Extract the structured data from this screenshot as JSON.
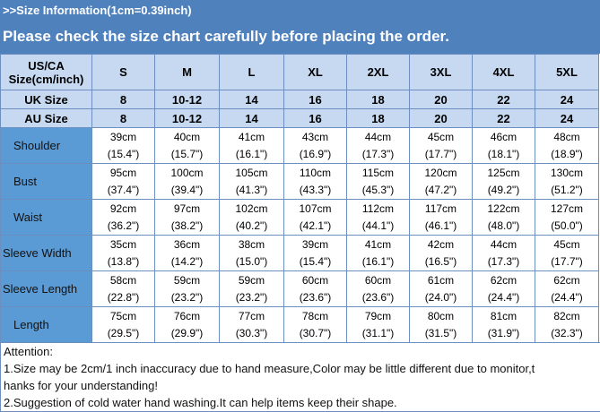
{
  "banner": {
    "line1": ">>Size Information(1cm=0.39inch)",
    "line2": "Please check the size chart carefully before placing the order."
  },
  "table": {
    "header_label": [
      "US/CA",
      "Size(cm/inch)"
    ],
    "sizes": [
      "S",
      "M",
      "L",
      "XL",
      "2XL",
      "3XL",
      "4XL",
      "5XL"
    ],
    "uk": {
      "label": "UK Size",
      "values": [
        "8",
        "10-12",
        "14",
        "16",
        "18",
        "20",
        "22",
        "24"
      ]
    },
    "au": {
      "label": "AU Size",
      "values": [
        "8",
        "10-12",
        "14",
        "16",
        "18",
        "20",
        "22",
        "24"
      ]
    },
    "rows": [
      {
        "label": "Shoulder",
        "cm": [
          "39cm",
          "40cm",
          "41cm",
          "43cm",
          "44cm",
          "45cm",
          "46cm",
          "48cm"
        ],
        "inch": [
          "(15.4\")",
          "(15.7\")",
          "(16.1\")",
          "(16.9\")",
          "(17.3\")",
          "(17.7\")",
          "(18.1\")",
          "(18.9\")"
        ]
      },
      {
        "label": "Bust",
        "cm": [
          "95cm",
          "100cm",
          "105cm",
          "110cm",
          "115cm",
          "120cm",
          "125cm",
          "130cm"
        ],
        "inch": [
          "(37.4\")",
          "(39.4\")",
          "(41.3\")",
          "(43.3\")",
          "(45.3\")",
          "(47.2\")",
          "(49.2\")",
          "(51.2\")"
        ]
      },
      {
        "label": "Waist",
        "cm": [
          "92cm",
          "97cm",
          "102cm",
          "107cm",
          "112cm",
          "117cm",
          "122cm",
          "127cm"
        ],
        "inch": [
          "(36.2\")",
          "(38.2\")",
          "(40.2\")",
          "(42.1\")",
          "(44.1\")",
          "(46.1\")",
          "(48.0\")",
          "(50.0\")"
        ]
      },
      {
        "label": "Sleeve Width",
        "cm": [
          "35cm",
          "36cm",
          "38cm",
          "39cm",
          "41cm",
          "42cm",
          "44cm",
          "45cm"
        ],
        "inch": [
          "(13.8\")",
          "(14.2\")",
          "(15.0\")",
          "(15.4\")",
          "(16.1\")",
          "(16.5\")",
          "(17.3\")",
          "(17.7\")"
        ]
      },
      {
        "label": "Sleeve Length",
        "cm": [
          "58cm",
          "59cm",
          "59cm",
          "60cm",
          "60cm",
          "61cm",
          "62cm",
          "62cm"
        ],
        "inch": [
          "(22.8\")",
          "(23.2\")",
          "(23.2\")",
          "(23.6\")",
          "(23.6\")",
          "(24.0\")",
          "(24.4\")",
          "(24.4\")"
        ]
      },
      {
        "label": "Length",
        "cm": [
          "75cm",
          "76cm",
          "77cm",
          "78cm",
          "79cm",
          "80cm",
          "81cm",
          "82cm"
        ],
        "inch": [
          "(29.5\")",
          "(29.9\")",
          "(30.3\")",
          "(30.7\")",
          "(31.1\")",
          "(31.5\")",
          "(31.9\")",
          "(32.3\")"
        ]
      }
    ]
  },
  "attention": {
    "title": "Attention:",
    "note1a": "1.Size may be 2cm/1 inch inaccuracy due to hand measure,Color may be little different due to monitor,t",
    "note1b": "hanks for your understanding!",
    "note2": "2.Suggestion of cold water hand washing.It can help items keep their shape."
  },
  "colors": {
    "banner": "#4f81bd",
    "header_cells": "#c6d9f1",
    "label_cells": "#5b9bd5"
  }
}
